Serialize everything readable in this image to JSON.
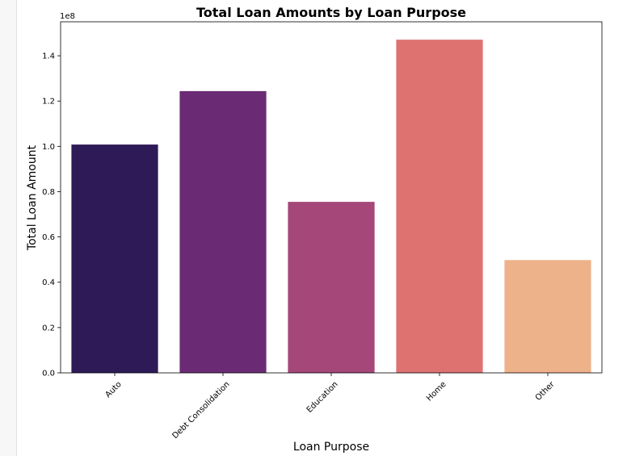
{
  "chart_data": {
    "type": "bar",
    "title": "Total Loan Amounts by Loan Purpose",
    "xlabel": "Loan Purpose",
    "ylabel": "Total Loan Amount",
    "y_offset_text": "1e8",
    "categories": [
      "Auto",
      "Debt Consolidation",
      "Education",
      "Home",
      "Other"
    ],
    "values": [
      100800000,
      124400000,
      75500000,
      147100000,
      49800000
    ],
    "colors": [
      "#2e1a56",
      "#6a2b74",
      "#a54778",
      "#de7271",
      "#eeb28a"
    ],
    "ylim": [
      0,
      155000000
    ],
    "y_scale": 100000000,
    "yticks": [
      0,
      20000000,
      40000000,
      60000000,
      80000000,
      100000000,
      120000000,
      140000000
    ],
    "ytick_labels": [
      "0.0",
      "0.2",
      "0.4",
      "0.6",
      "0.8",
      "1.0",
      "1.2",
      "1.4"
    ],
    "grid": false,
    "legend": "none"
  }
}
